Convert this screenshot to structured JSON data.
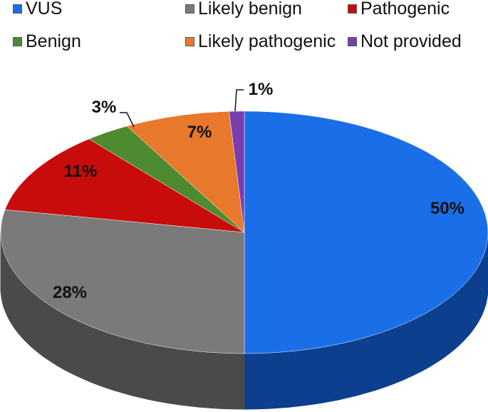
{
  "chart_data": {
    "type": "pie",
    "style": "3d",
    "title": "",
    "legend_position": "top",
    "slices": [
      {
        "name": "VUS",
        "value": 50,
        "label": "50%",
        "color": "#1a6fe8",
        "side": "#0d3f8f"
      },
      {
        "name": "Likely benign",
        "value": 28,
        "label": "28%",
        "color": "#7a7a7a",
        "side": "#4a4a4a"
      },
      {
        "name": "Pathogenic",
        "value": 11,
        "label": "11%",
        "color": "#c80b0b",
        "side": "#7a0606"
      },
      {
        "name": "Benign",
        "value": 3,
        "label": "3%",
        "color": "#4d8a30",
        "side": "#2e5a1b"
      },
      {
        "name": "Likely pathogenic",
        "value": 7,
        "label": "7%",
        "color": "#e8782c",
        "side": "#8f4615"
      },
      {
        "name": "Not provided",
        "value": 1,
        "label": "1%",
        "color": "#7a3db0",
        "side": "#4a2270"
      }
    ]
  }
}
